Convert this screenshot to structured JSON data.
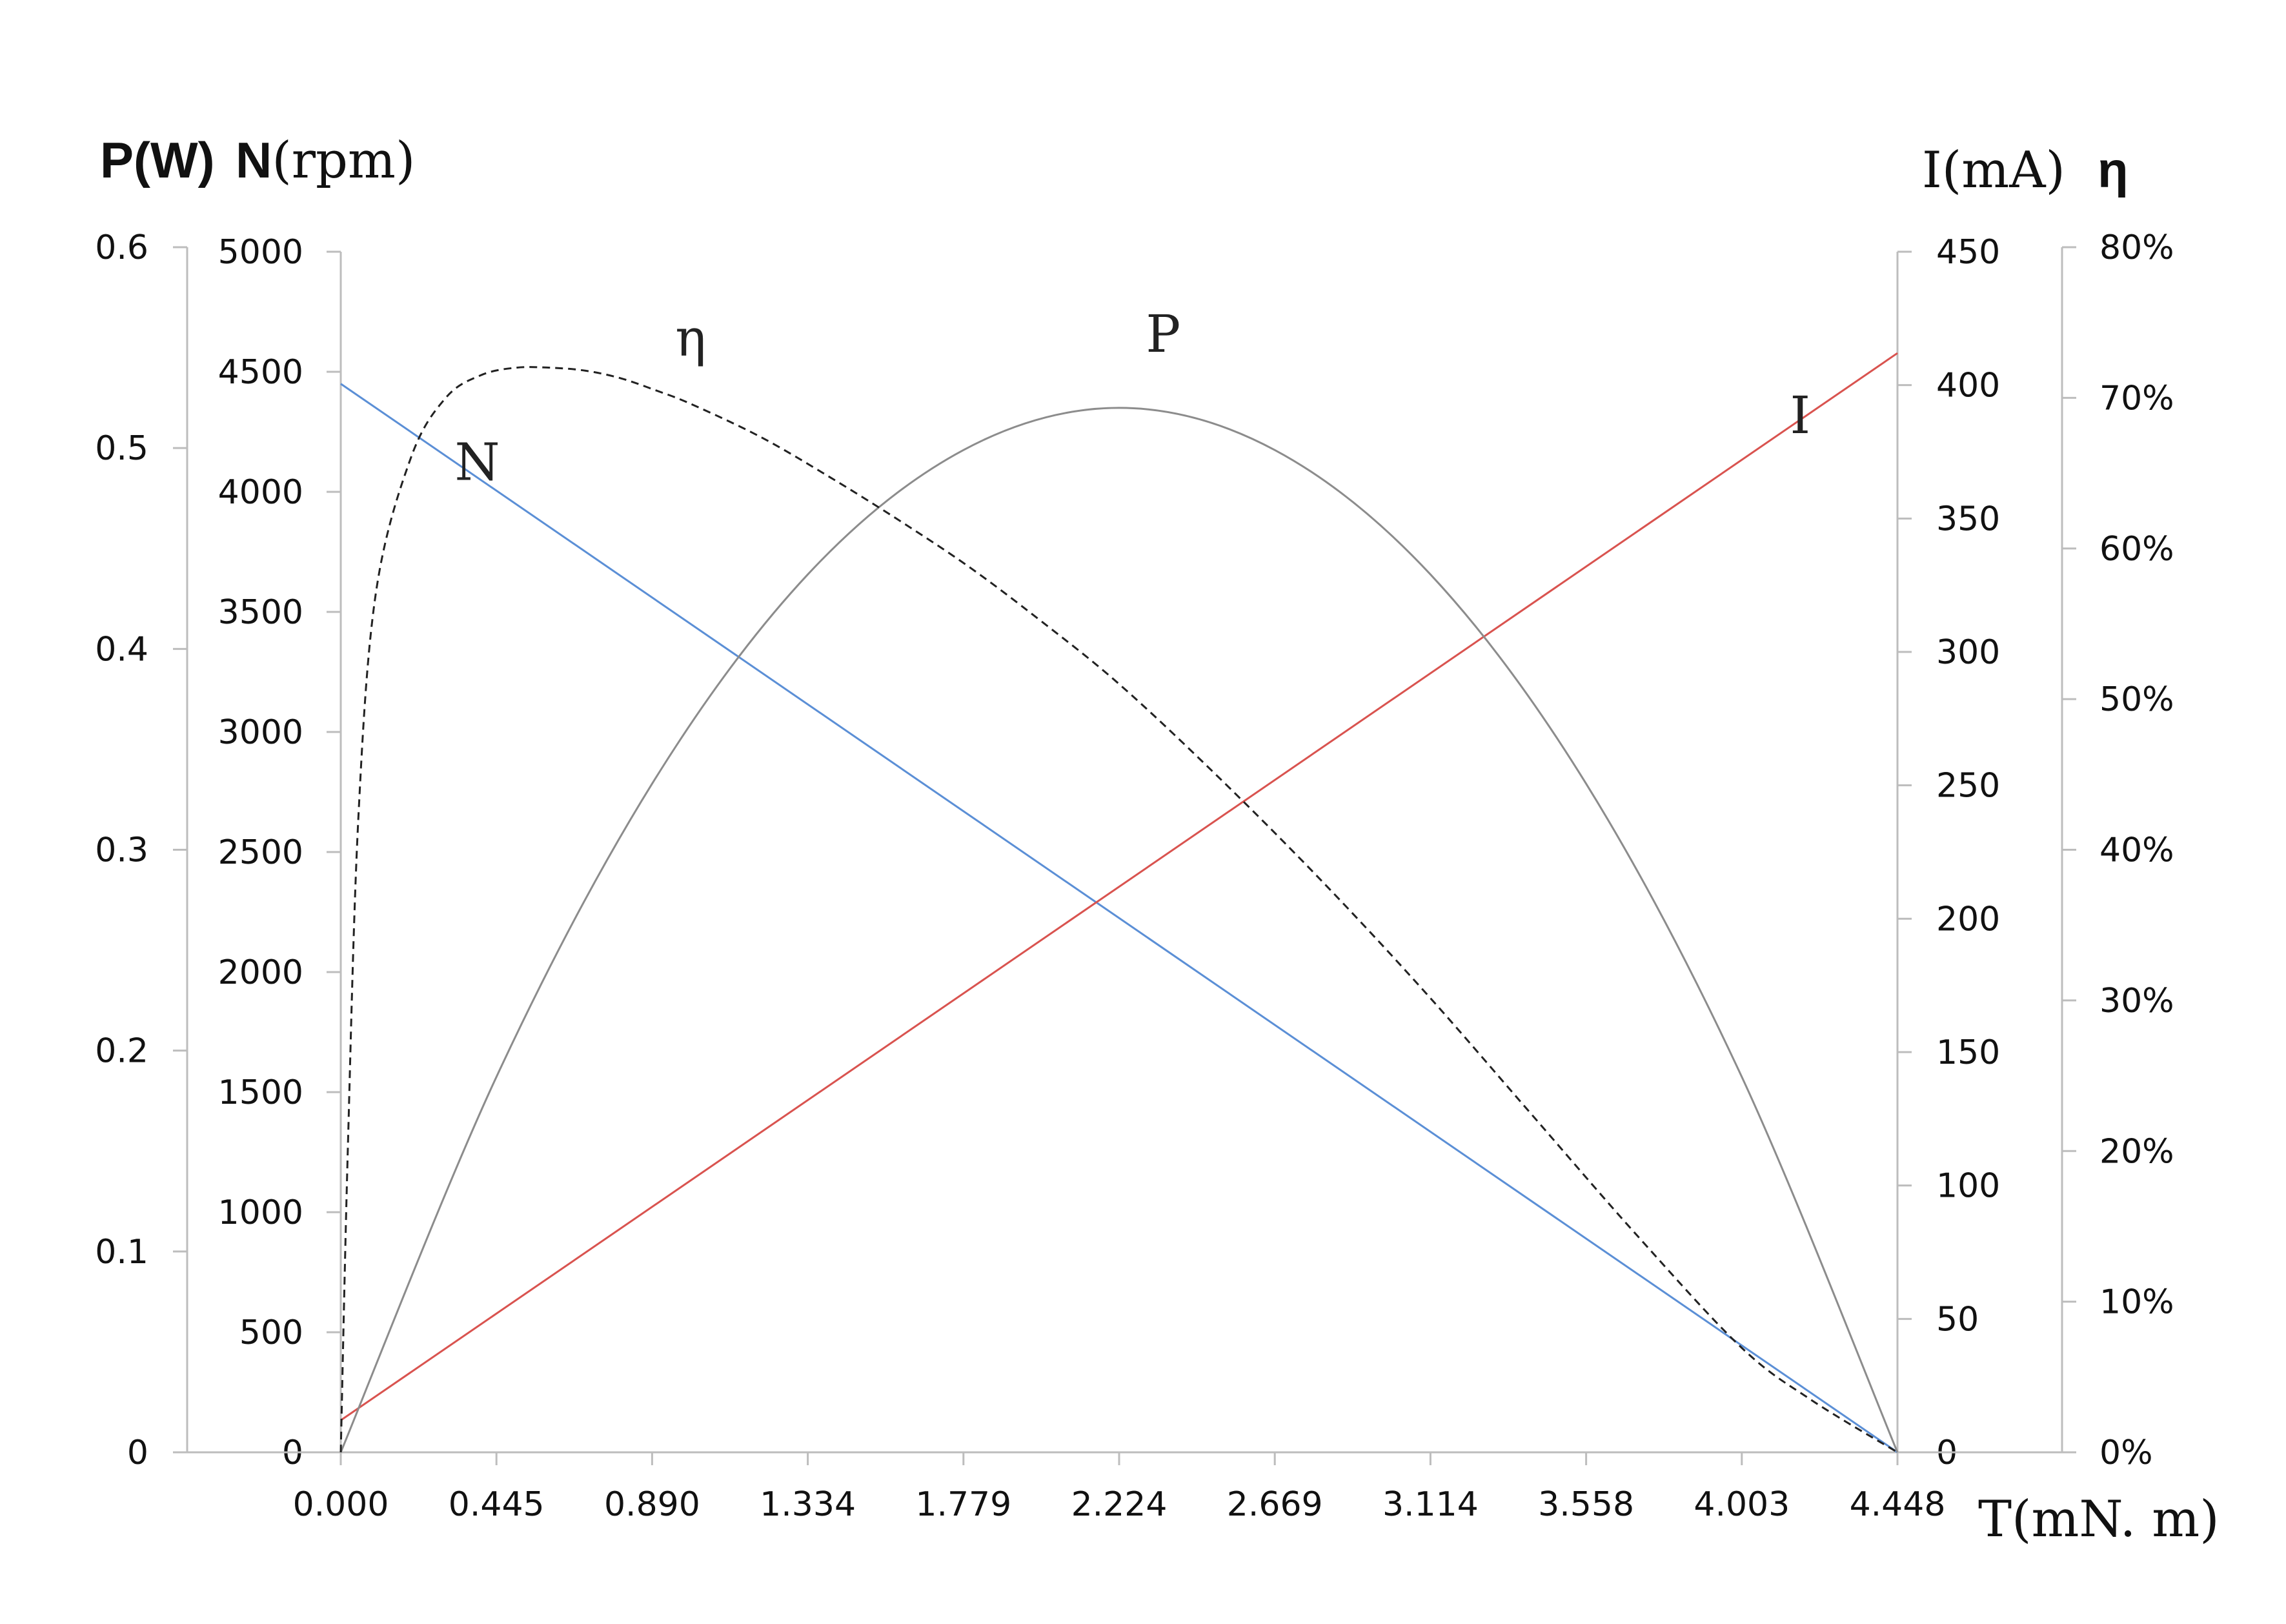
{
  "chart_data": {
    "type": "line",
    "title": "",
    "x_axis": {
      "label": "T(mN. m)",
      "ticks": [
        "0.000",
        "0.445",
        "0.890",
        "1.334",
        "1.779",
        "2.224",
        "2.669",
        "3.114",
        "3.558",
        "4.003",
        "4.448"
      ],
      "range": [
        0,
        4.448
      ]
    },
    "left_axes_title": {
      "p": "P(W)",
      "n_bold": "N",
      "n_unit": "(rpm)"
    },
    "right_axes_title": {
      "i": "I(mA)",
      "eta": "η"
    },
    "axes": {
      "P": {
        "ticks": [
          "0",
          "0.1",
          "0.2",
          "0.3",
          "0.4",
          "0.5",
          "0.6"
        ],
        "range": [
          0,
          0.6
        ]
      },
      "N": {
        "ticks": [
          "0",
          "500",
          "1000",
          "1500",
          "2000",
          "2500",
          "3000",
          "3500",
          "4000",
          "4500",
          "5000"
        ],
        "range": [
          0,
          5000
        ]
      },
      "I": {
        "ticks": [
          "0",
          "50",
          "100",
          "150",
          "200",
          "250",
          "300",
          "350",
          "400",
          "450"
        ],
        "range": [
          0,
          450
        ]
      },
      "eta": {
        "ticks": [
          "0%",
          "10%",
          "20%",
          "30%",
          "40%",
          "50%",
          "60%",
          "70%",
          "80%"
        ],
        "range": [
          0,
          0.8
        ]
      }
    },
    "series": [
      {
        "name": "N",
        "axis": "N",
        "color": "#5b8fd6",
        "style": "solid",
        "label": "N",
        "x": [
          0,
          4.448
        ],
        "y": [
          4450,
          0
        ]
      },
      {
        "name": "I",
        "axis": "I",
        "color": "#d9534f",
        "style": "solid",
        "label": "I",
        "x": [
          0,
          4.448
        ],
        "y": [
          12,
          412
        ]
      },
      {
        "name": "P",
        "axis": "P",
        "color": "#8c8c8c",
        "style": "solid",
        "label": "P",
        "x": [
          0,
          0.445,
          0.89,
          1.334,
          1.779,
          2.224,
          2.669,
          3.114,
          3.558,
          4.003,
          4.448
        ],
        "y": [
          0,
          0.187,
          0.333,
          0.437,
          0.499,
          0.52,
          0.499,
          0.437,
          0.333,
          0.187,
          0
        ]
      },
      {
        "name": "η",
        "axis": "eta",
        "color": "#222222",
        "style": "dashed",
        "label": "η",
        "x": [
          0,
          0.02,
          0.05,
          0.1,
          0.2,
          0.3,
          0.4,
          0.5,
          0.6,
          0.7,
          0.8,
          0.9,
          1.0,
          1.2,
          1.4,
          1.6,
          1.8,
          2.0,
          2.224,
          2.5,
          2.8,
          3.1,
          3.4,
          3.7,
          4.0,
          4.2,
          4.448
        ],
        "y": [
          0,
          0.2,
          0.42,
          0.57,
          0.66,
          0.7,
          0.715,
          0.72,
          0.72,
          0.718,
          0.713,
          0.705,
          0.696,
          0.674,
          0.647,
          0.618,
          0.587,
          0.552,
          0.51,
          0.45,
          0.38,
          0.305,
          0.225,
          0.145,
          0.07,
          0.035,
          0
        ]
      }
    ],
    "grid": false
  }
}
